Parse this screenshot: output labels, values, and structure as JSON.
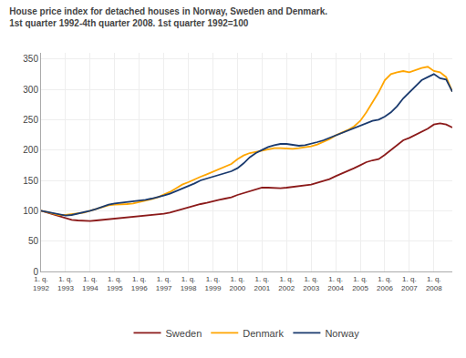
{
  "chart_data": {
    "type": "line",
    "title": "House price index for detached houses in Norway, Sweden and Denmark.",
    "subtitle": "1st quarter 1992-4th quarter 2008. 1st quarter 1992=100",
    "categories": [
      "1. q.\n1992",
      null,
      null,
      null,
      "1. q.\n1993",
      null,
      null,
      null,
      "1. q.\n1994",
      null,
      null,
      null,
      "1. q.\n1995",
      null,
      null,
      null,
      "1. q.\n1996",
      null,
      null,
      null,
      "1. q.\n1997",
      null,
      null,
      null,
      "1. q.\n1998",
      null,
      null,
      null,
      "1. q.\n1999",
      null,
      null,
      null,
      "1. q.\n2000",
      null,
      null,
      null,
      "1. q.\n2001",
      null,
      null,
      null,
      "1. q.\n2002",
      null,
      null,
      null,
      "1. q.\n2003",
      null,
      null,
      null,
      "1. q.\n2004",
      null,
      null,
      null,
      "1. q.\n2005",
      null,
      null,
      null,
      "1. q.\n2006",
      null,
      null,
      null,
      "1. q.\n2007",
      null,
      null,
      null,
      "1. q.\n2008",
      null,
      null,
      null
    ],
    "series": [
      {
        "name": "Sweden",
        "color": "#8b1a1a",
        "values": [
          100,
          97,
          93,
          90,
          87,
          85,
          84,
          83,
          83,
          84,
          85,
          86,
          87,
          87,
          88,
          89,
          90,
          91,
          92,
          93,
          95,
          97,
          100,
          102,
          105,
          108,
          111,
          113,
          116,
          118,
          120,
          122,
          126,
          129,
          132,
          135,
          138,
          138,
          137,
          137,
          138,
          139,
          140,
          141,
          143,
          146,
          149,
          152,
          157,
          161,
          165,
          170,
          175,
          180,
          183,
          185,
          192,
          200,
          208,
          216,
          220,
          225,
          230,
          235,
          242,
          244,
          242,
          237
        ]
      },
      {
        "name": "Denmark",
        "color": "#ffa500",
        "values": [
          100,
          98,
          95,
          93,
          93,
          94,
          95,
          97,
          100,
          103,
          107,
          109,
          110,
          110,
          111,
          112,
          114,
          116,
          119,
          122,
          126,
          131,
          137,
          143,
          147,
          152,
          156,
          160,
          164,
          168,
          172,
          177,
          185,
          191,
          195,
          197,
          200,
          202,
          203,
          203,
          202,
          202,
          203,
          204,
          206,
          209,
          213,
          218,
          224,
          228,
          233,
          239,
          248,
          262,
          278,
          295,
          315,
          325,
          328,
          330,
          328,
          332,
          335,
          337,
          330,
          328,
          320,
          296
        ]
      },
      {
        "name": "Norway",
        "color": "#1a3a6e",
        "values": [
          100,
          98,
          96,
          95,
          92,
          93,
          95,
          97,
          100,
          103,
          107,
          110,
          112,
          113,
          114,
          115,
          116,
          118,
          120,
          122,
          125,
          128,
          132,
          136,
          140,
          145,
          150,
          153,
          155,
          158,
          162,
          165,
          170,
          178,
          188,
          195,
          200,
          205,
          208,
          210,
          210,
          208,
          207,
          208,
          210,
          213,
          216,
          220,
          225,
          228,
          232,
          236,
          240,
          245,
          248,
          250,
          255,
          262,
          272,
          285,
          295,
          305,
          315,
          320,
          325,
          318,
          316,
          296
        ]
      }
    ],
    "ylim": [
      0,
      360
    ],
    "yticks": [
      0,
      50,
      100,
      150,
      200,
      250,
      300,
      350
    ],
    "grid": true,
    "legend": "bottom"
  }
}
